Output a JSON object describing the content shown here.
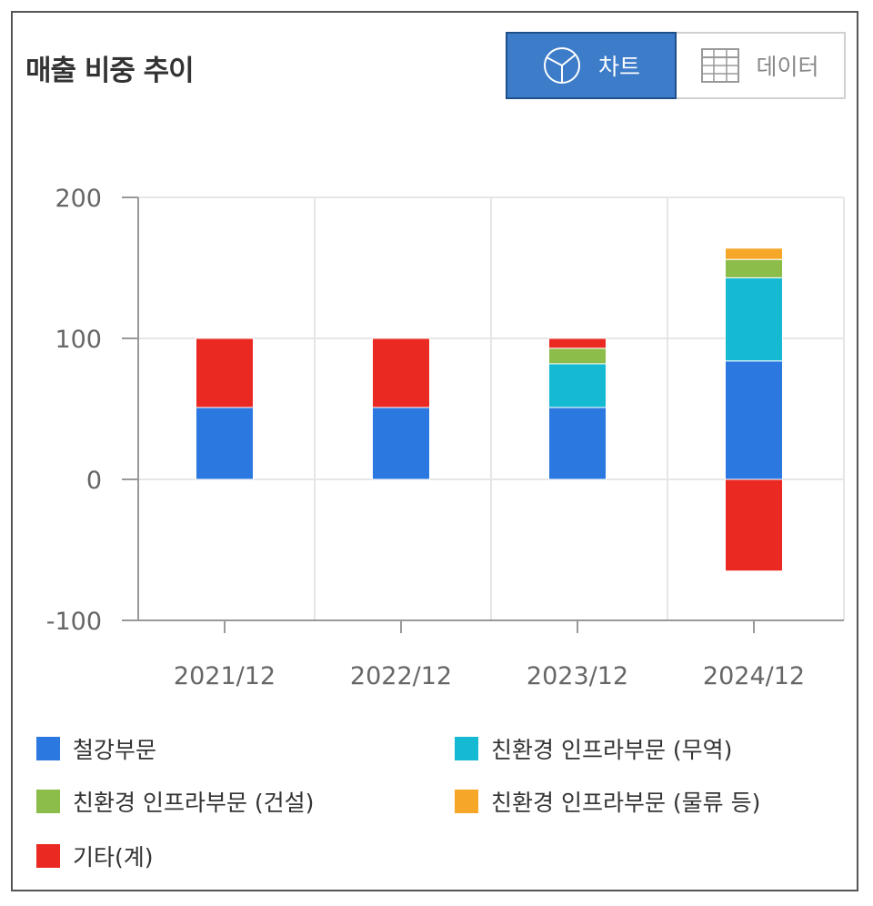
{
  "header": {
    "title": "매출 비중 추이",
    "chart_button": "차트",
    "data_button": "데이터"
  },
  "colors": {
    "steel": "#2a78e0",
    "eco_trade": "#16b9d2",
    "eco_construction": "#8cbd4a",
    "eco_logistics": "#f7a728",
    "other": "#ea2a22",
    "active_button": "#3d7cc9"
  },
  "chart_data": {
    "type": "bar",
    "stacked": true,
    "title": "매출 비중 추이",
    "xlabel": "",
    "ylabel": "",
    "ylim": [
      -100,
      200
    ],
    "yticks": [
      200,
      100,
      0,
      -100
    ],
    "grid": true,
    "legend_position": "bottom",
    "categories": [
      "2021/12",
      "2022/12",
      "2023/12",
      "2024/12"
    ],
    "series": [
      {
        "name": "철강부문",
        "color": "#2a78e0",
        "values": [
          51,
          51,
          51,
          84
        ]
      },
      {
        "name": "친환경 인프라부문 (무역)",
        "color": "#16b9d2",
        "values": [
          0,
          0,
          31,
          59
        ]
      },
      {
        "name": "친환경 인프라부문 (건설)",
        "color": "#8cbd4a",
        "values": [
          0,
          0,
          11,
          13
        ]
      },
      {
        "name": "친환경 인프라부문 (물류 등)",
        "color": "#f7a728",
        "values": [
          0,
          0,
          0,
          8
        ]
      },
      {
        "name": "기타(계)",
        "color": "#ea2a22",
        "values": [
          49,
          49,
          7,
          -65
        ]
      }
    ]
  }
}
